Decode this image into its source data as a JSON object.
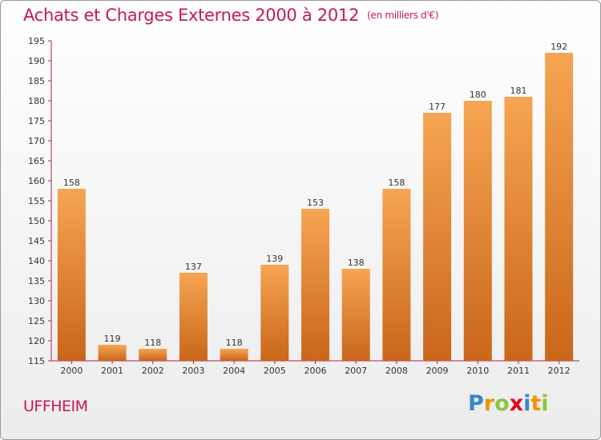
{
  "title": "Achats et Charges Externes 2000 à 2012",
  "subtitle": "(en milliers d'€)",
  "town": "UFFHEIM",
  "logo": {
    "letters": [
      "P",
      "r",
      "o",
      "x",
      "i",
      "t",
      "i"
    ],
    "colors": [
      "#3a86c8",
      "#f29400",
      "#8cc63f",
      "#e2001a",
      "#3a86c8",
      "#f29400",
      "#8cc63f"
    ]
  },
  "colors": {
    "accent": "#c8184e",
    "bar_top": "#f6a552",
    "bar_bottom": "#c9661a",
    "axis": "#b02050"
  },
  "chart_data": {
    "type": "bar",
    "categories": [
      "2000",
      "2001",
      "2002",
      "2003",
      "2004",
      "2005",
      "2006",
      "2007",
      "2008",
      "2009",
      "2010",
      "2011",
      "2012"
    ],
    "values": [
      158,
      119,
      118,
      137,
      118,
      139,
      153,
      138,
      158,
      177,
      180,
      181,
      192
    ],
    "ylim": [
      115,
      195
    ],
    "yticks": [
      115,
      120,
      125,
      130,
      135,
      140,
      145,
      150,
      155,
      160,
      165,
      170,
      175,
      180,
      185,
      190,
      195
    ],
    "grid": false
  }
}
